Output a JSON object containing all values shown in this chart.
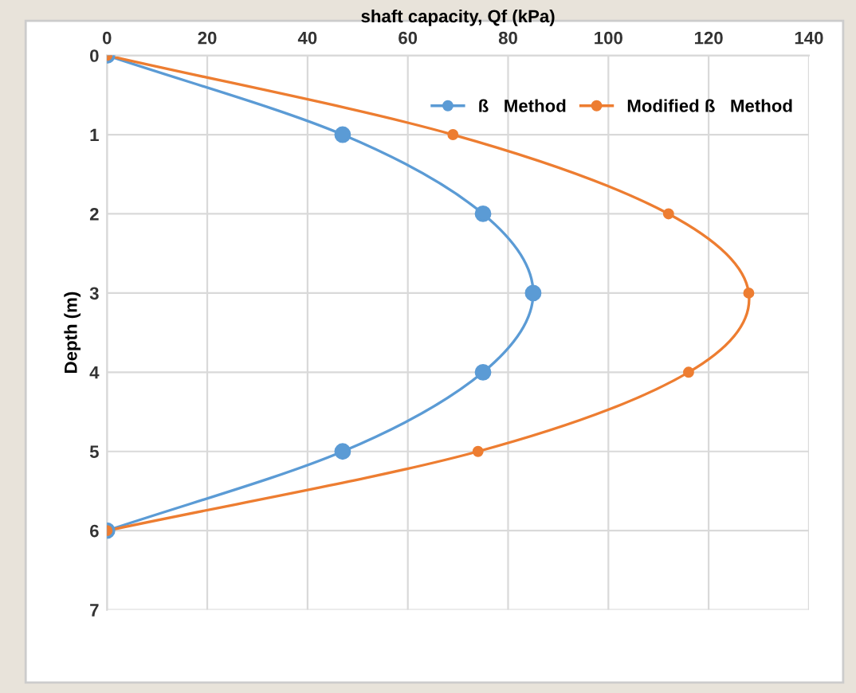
{
  "chart_data": {
    "type": "line",
    "xlabel": "shaft capacity, Qf (kPa)",
    "ylabel": "Depth (m)",
    "xlim": [
      0,
      140
    ],
    "xticks": [
      0,
      20,
      40,
      60,
      80,
      100,
      120,
      140
    ],
    "ylim": [
      7,
      0
    ],
    "yticks": [
      0,
      1,
      2,
      3,
      4,
      5,
      6,
      7
    ],
    "grid": true,
    "legend": "top right",
    "marker": "circle",
    "line_style": "solid",
    "series": [
      {
        "name": "ß   Method",
        "color": "#5b9bd5",
        "x": [
          0,
          47,
          75,
          85,
          75,
          47,
          0
        ],
        "values": [
          0,
          1,
          2,
          3,
          4,
          5,
          6
        ]
      },
      {
        "name": "Modified ß   Method",
        "color": "#ed7d31",
        "x": [
          0,
          69,
          112,
          128,
          116,
          74,
          0
        ],
        "values": [
          0,
          1,
          2,
          3,
          4,
          5,
          6
        ]
      }
    ]
  }
}
